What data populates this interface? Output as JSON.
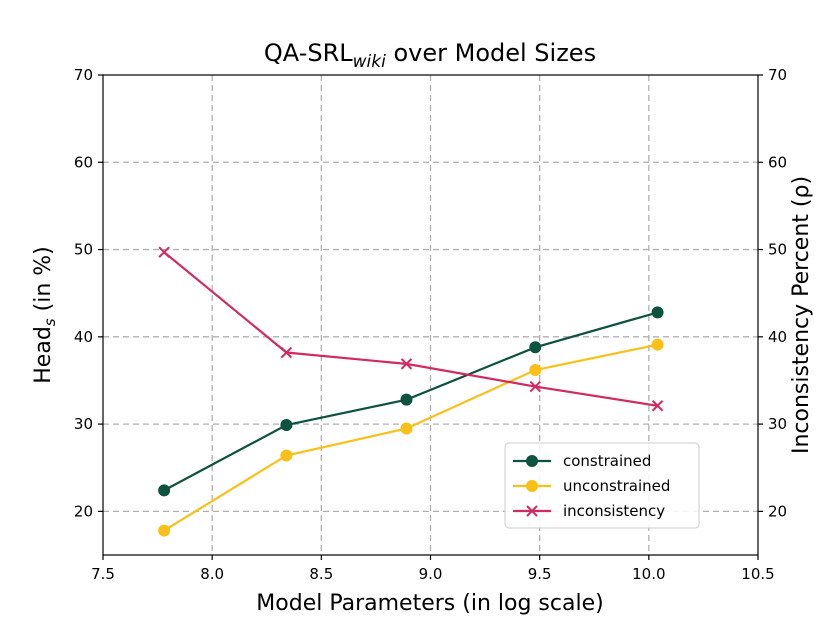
{
  "chart_data": {
    "type": "line",
    "title": "QA-SRL",
    "title_sub": "wiki",
    "title_rest": " over Model Sizes",
    "xlabel": "Model Parameters (in log scale)",
    "ylabel_left": "Head",
    "ylabel_left_sub": "s",
    "ylabel_left_rest": " (in %)",
    "ylabel_right": "Inconsistency Percent (ρ)",
    "xlim": [
      7.5,
      10.5
    ],
    "ylim": [
      15,
      70
    ],
    "xticks": [
      "7.5",
      "8.0",
      "8.5",
      "9.0",
      "9.5",
      "10.0",
      "10.5"
    ],
    "yticks_left": [
      "20",
      "30",
      "40",
      "50",
      "60",
      "70"
    ],
    "yticks_right": [
      "20",
      "30",
      "40",
      "50",
      "60",
      "70"
    ],
    "grid": true,
    "legend_position": "lower-right",
    "series": [
      {
        "name": "constrained",
        "color": "#0e5240",
        "marker": "circle",
        "x": [
          7.78,
          8.34,
          8.89,
          9.48,
          10.04
        ],
        "values": [
          22.4,
          29.9,
          32.8,
          38.8,
          42.8
        ]
      },
      {
        "name": "unconstrained",
        "color": "#fbc018",
        "marker": "circle",
        "x": [
          7.78,
          8.34,
          8.89,
          9.48,
          10.04
        ],
        "values": [
          17.8,
          26.4,
          29.5,
          36.2,
          39.1
        ]
      },
      {
        "name": "inconsistency",
        "color": "#d12a61",
        "marker": "x",
        "x": [
          7.78,
          8.34,
          8.89,
          9.48,
          10.04
        ],
        "values": [
          49.7,
          38.2,
          36.9,
          34.3,
          32.1
        ]
      }
    ]
  }
}
